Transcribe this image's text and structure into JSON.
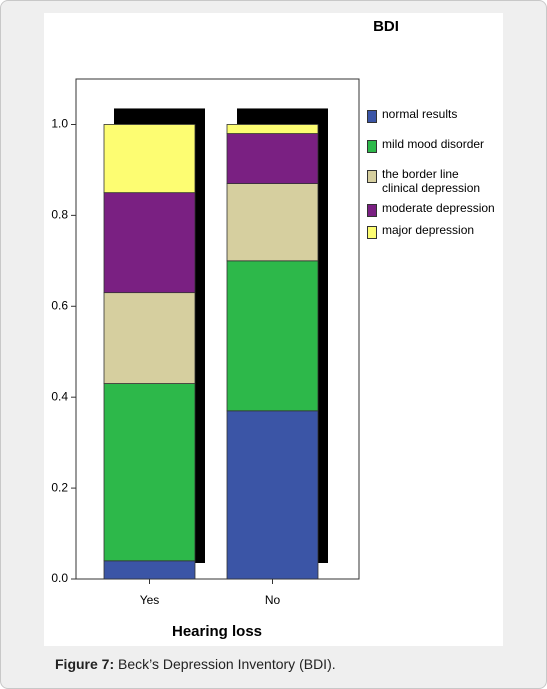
{
  "chart_data": {
    "type": "stacked_bar",
    "title": "BDI",
    "x_label": "Hearing loss",
    "categories": [
      "Yes",
      "No"
    ],
    "series": [
      {
        "name": "normal results",
        "color": "#3b55a6",
        "values": [
          0.04,
          0.37
        ]
      },
      {
        "name": "mild mood disorder",
        "color": "#2db84a",
        "values": [
          0.39,
          0.33
        ]
      },
      {
        "name": "the border line clinical depression",
        "color": "#d6cf9f",
        "values": [
          0.2,
          0.17
        ]
      },
      {
        "name": "moderate depression",
        "color": "#7a2082",
        "values": [
          0.22,
          0.11
        ]
      },
      {
        "name": "major depression",
        "color": "#fdfd72",
        "values": [
          0.15,
          0.02
        ]
      }
    ],
    "ylim": [
      0,
      1.1
    ],
    "yticks": [
      {
        "value": 0,
        "label": "0.0"
      },
      {
        "value": 0.2,
        "label": "0.2"
      },
      {
        "value": 0.4,
        "label": "0.4"
      },
      {
        "value": 0.6,
        "label": "0.6"
      },
      {
        "value": 0.8,
        "label": "0.8"
      },
      {
        "value": 1,
        "label": "1.0"
      }
    ]
  },
  "caption": {
    "label": "Figure 7:",
    "text": "Beck’s  Depression  Inventory (BDI)."
  }
}
